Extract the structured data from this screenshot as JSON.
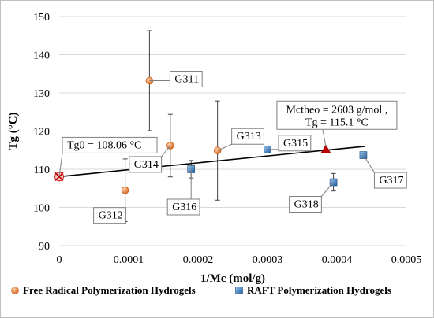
{
  "chart_data": {
    "type": "scatter",
    "title": "",
    "xlabel": "1/Mc (mol/g)",
    "ylabel": "Tg (°C)",
    "xlim": [
      0,
      0.0005
    ],
    "ylim": [
      90,
      150
    ],
    "x_ticks": [
      {
        "value": 0,
        "label": "0"
      },
      {
        "value": 0.0001,
        "label": "0.0001"
      },
      {
        "value": 0.0002,
        "label": "0.0002"
      },
      {
        "value": 0.0003,
        "label": "0.0003"
      },
      {
        "value": 0.0004,
        "label": "0.0004"
      },
      {
        "value": 0.0005,
        "label": "0.0005"
      }
    ],
    "y_ticks": [
      {
        "value": 90,
        "label": "90"
      },
      {
        "value": 100,
        "label": "100"
      },
      {
        "value": 110,
        "label": "110"
      },
      {
        "value": 120,
        "label": "120"
      },
      {
        "value": 130,
        "label": "130"
      },
      {
        "value": 140,
        "label": "140"
      },
      {
        "value": 150,
        "label": "150"
      }
    ],
    "grid": {
      "horizontal": true,
      "vertical": false
    },
    "legend_position": "bottom",
    "series": [
      {
        "name": "Free Radical Polymerization Hydrogels",
        "marker": "circle",
        "color": "#ED7D31",
        "points": [
          {
            "label": "G311",
            "x": 0.00013,
            "y": 133.2,
            "err": 13.1
          },
          {
            "label": "G312",
            "x": 9.5e-05,
            "y": 104.5,
            "err": 8.2
          },
          {
            "label": "G313",
            "x": 0.000228,
            "y": 114.9,
            "err": 13.0
          },
          {
            "label": "G314",
            "x": 0.00016,
            "y": 116.2,
            "err": 8.2
          }
        ]
      },
      {
        "name": "RAFT Polymerization Hydrogels",
        "marker": "square",
        "color": "#2E75B6",
        "points": [
          {
            "label": "G315",
            "x": 0.0003,
            "y": 115.2,
            "err": 0
          },
          {
            "label": "G316",
            "x": 0.00019,
            "y": 110.0,
            "err": 2.3
          },
          {
            "label": "G317",
            "x": 0.000438,
            "y": 113.7,
            "err": 0
          },
          {
            "label": "G318",
            "x": 0.000395,
            "y": 106.6,
            "err": 2.3
          }
        ]
      }
    ],
    "fit_line": {
      "x": [
        0,
        0.00044
      ],
      "y": [
        108.06,
        116.0
      ],
      "color": "#000000"
    },
    "special_points": [
      {
        "label": "Tg0 = 108.06 °C",
        "x": 0,
        "y": 108.06,
        "marker": "x",
        "color": "#C00000"
      },
      {
        "label": "Mctheo = 2603 g/mol ,",
        "label2": "Tg = 115.1 °C",
        "x": 0.000384,
        "y": 115.1,
        "marker": "triangle",
        "color": "#C00000"
      }
    ]
  }
}
